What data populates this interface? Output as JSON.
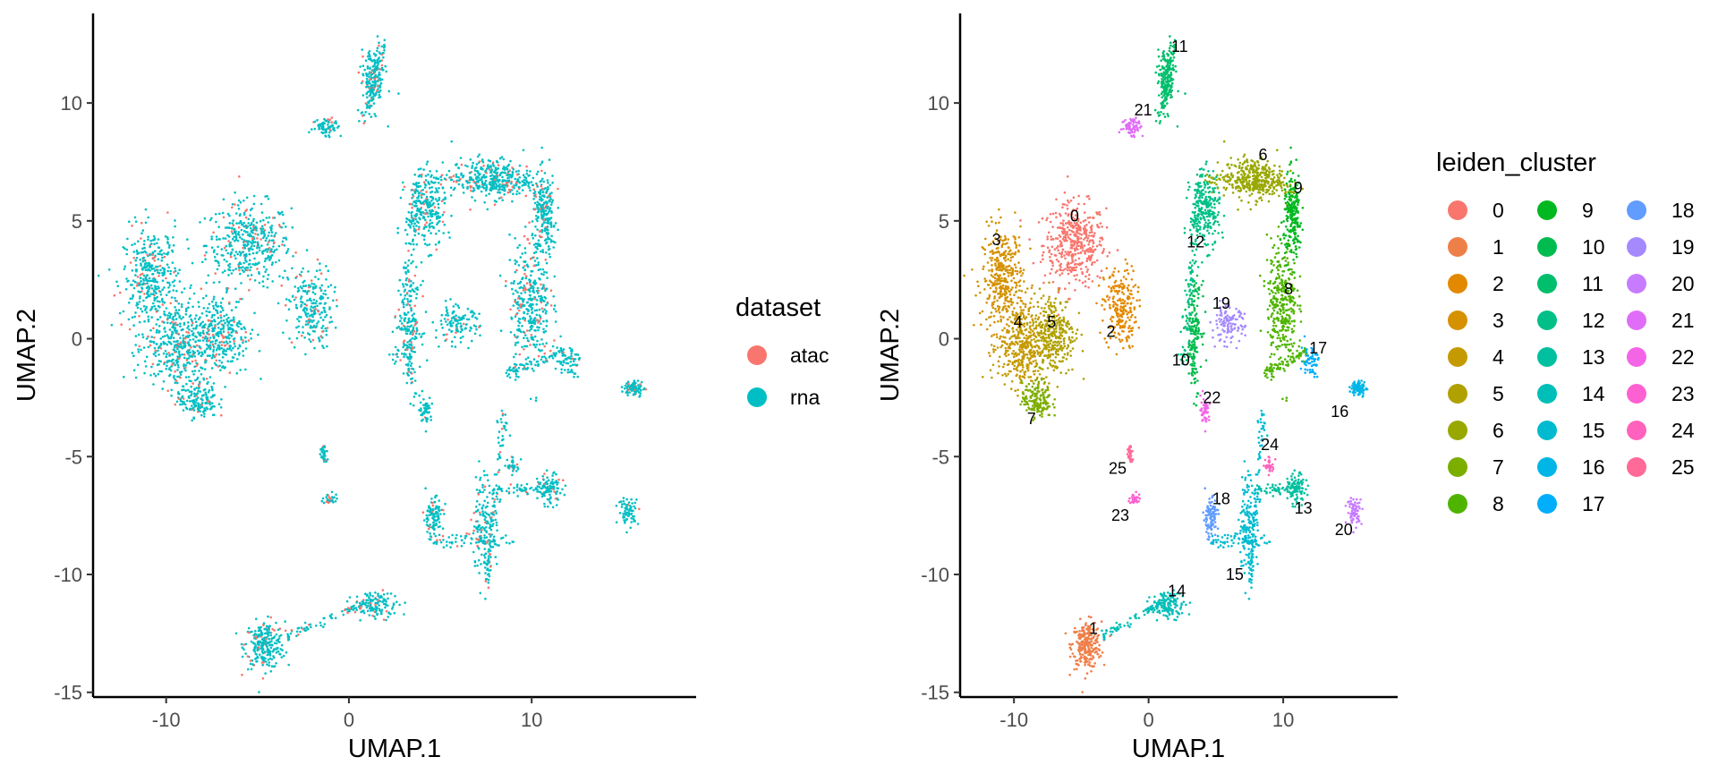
{
  "chart_data": [
    {
      "type": "scatter",
      "xlabel": "UMAP.1",
      "ylabel": "UMAP.2",
      "xlim": [
        -14,
        19
      ],
      "ylim": [
        -15.2,
        13.8
      ],
      "xticks": [
        -10,
        0,
        10
      ],
      "yticks": [
        -15,
        -10,
        -5,
        0,
        5,
        10
      ],
      "grid": false,
      "legend": {
        "title": "dataset",
        "placement": "right",
        "entries": [
          {
            "label": "atac",
            "color": "#F8766D"
          },
          {
            "label": "rna",
            "color": "#00BFC4"
          }
        ]
      },
      "series": [
        {
          "name": "atac",
          "color": "#F8766D",
          "share": 0.12
        },
        {
          "name": "rna",
          "color": "#00BFC4",
          "share": 0.88
        }
      ]
    },
    {
      "type": "scatter",
      "xlabel": "UMAP.1",
      "ylabel": "UMAP.2",
      "xlim": [
        -14,
        18.5
      ],
      "ylim": [
        -15.2,
        13.8
      ],
      "xticks": [
        -10,
        0,
        10
      ],
      "yticks": [
        -15,
        -10,
        -5,
        0,
        5,
        10
      ],
      "grid": false,
      "legend": {
        "title": "leiden_cluster",
        "placement": "right",
        "columns": 3,
        "entries": [
          {
            "label": "0",
            "color": "#F8766D"
          },
          {
            "label": "1",
            "color": "#EF7F49"
          },
          {
            "label": "2",
            "color": "#E38900"
          },
          {
            "label": "3",
            "color": "#D59100"
          },
          {
            "label": "4",
            "color": "#C49A00"
          },
          {
            "label": "5",
            "color": "#B0A100"
          },
          {
            "label": "6",
            "color": "#99A800"
          },
          {
            "label": "7",
            "color": "#7CAE00"
          },
          {
            "label": "8",
            "color": "#4FB400"
          },
          {
            "label": "9",
            "color": "#00B81F"
          },
          {
            "label": "10",
            "color": "#00BB4E"
          },
          {
            "label": "11",
            "color": "#00BE6C"
          },
          {
            "label": "12",
            "color": "#00C087"
          },
          {
            "label": "13",
            "color": "#00C0A0"
          },
          {
            "label": "14",
            "color": "#00BFB8"
          },
          {
            "label": "15",
            "color": "#00BBD0"
          },
          {
            "label": "16",
            "color": "#00B6E6"
          },
          {
            "label": "17",
            "color": "#00AEFA"
          },
          {
            "label": "18",
            "color": "#619CFF"
          },
          {
            "label": "19",
            "color": "#A58AFF"
          },
          {
            "label": "20",
            "color": "#C77CFF"
          },
          {
            "label": "21",
            "color": "#E06DF7"
          },
          {
            "label": "22",
            "color": "#F365E6"
          },
          {
            "label": "23",
            "color": "#FD61D1"
          },
          {
            "label": "24",
            "color": "#FF62BC"
          },
          {
            "label": "25",
            "color": "#FF6A98"
          }
        ]
      },
      "cluster_labels": [
        {
          "label": "0",
          "x": -5.5,
          "y": 5.2
        },
        {
          "label": "1",
          "x": -4.1,
          "y": -12.3
        },
        {
          "label": "2",
          "x": -2.8,
          "y": 0.3
        },
        {
          "label": "3",
          "x": -11.3,
          "y": 4.2
        },
        {
          "label": "4",
          "x": -9.7,
          "y": 0.7
        },
        {
          "label": "5",
          "x": -7.2,
          "y": 0.7
        },
        {
          "label": "6",
          "x": 8.5,
          "y": 7.8
        },
        {
          "label": "7",
          "x": -8.7,
          "y": -3.4
        },
        {
          "label": "8",
          "x": 10.4,
          "y": 2.1
        },
        {
          "label": "9",
          "x": 11.1,
          "y": 6.4
        },
        {
          "label": "10",
          "x": 2.4,
          "y": -0.9
        },
        {
          "label": "11",
          "x": 2.3,
          "y": 12.4
        },
        {
          "label": "12",
          "x": 3.5,
          "y": 4.1
        },
        {
          "label": "13",
          "x": 11.5,
          "y": -7.2
        },
        {
          "label": "14",
          "x": 2.1,
          "y": -10.7
        },
        {
          "label": "15",
          "x": 6.4,
          "y": -10.0
        },
        {
          "label": "16",
          "x": 14.2,
          "y": -3.1
        },
        {
          "label": "17",
          "x": 12.6,
          "y": -0.4
        },
        {
          "label": "18",
          "x": 5.4,
          "y": -6.8
        },
        {
          "label": "19",
          "x": 5.4,
          "y": 1.5
        },
        {
          "label": "20",
          "x": 14.5,
          "y": -8.1
        },
        {
          "label": "21",
          "x": -0.4,
          "y": 9.7
        },
        {
          "label": "22",
          "x": 4.7,
          "y": -2.5
        },
        {
          "label": "23",
          "x": -2.1,
          "y": -7.5
        },
        {
          "label": "24",
          "x": 9.0,
          "y": -4.5
        },
        {
          "label": "25",
          "x": -2.3,
          "y": -5.5
        }
      ]
    }
  ]
}
